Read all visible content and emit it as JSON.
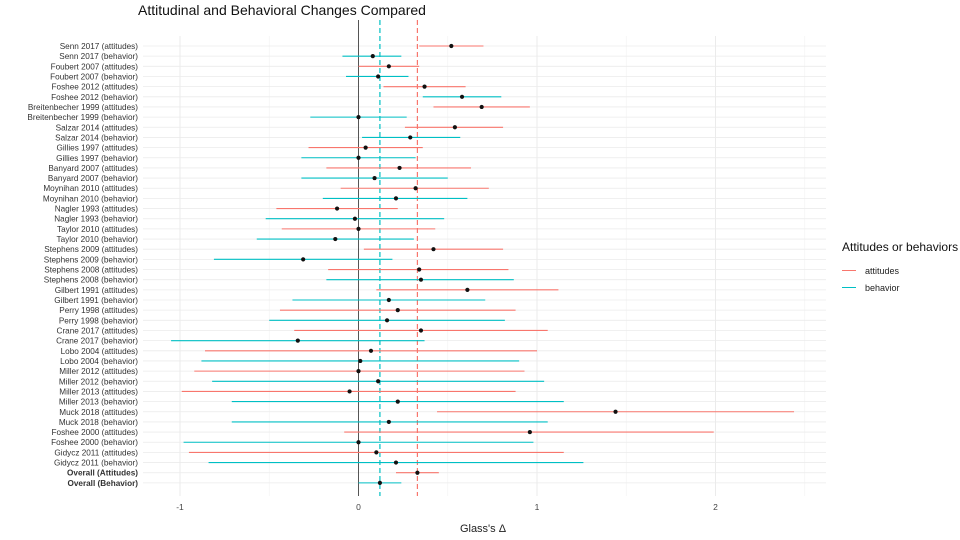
{
  "chart_data": {
    "type": "forest",
    "title": "Attitudinal and Behavioral Changes Compared",
    "xlabel": "Glass's Δ",
    "ylabel": "",
    "xlim": [
      -1.25,
      2.62
    ],
    "xticks": [
      -1,
      0,
      1,
      2
    ],
    "grid": true,
    "legend": {
      "title": "Attitudes or behaviors",
      "position": "right"
    },
    "series": [
      {
        "name": "attitudes",
        "color": "#F8766D"
      },
      {
        "name": "behavior",
        "color": "#00BFC4"
      }
    ],
    "reference_lines": [
      {
        "series": "attitudes",
        "x": 0.33,
        "style": "dashed"
      },
      {
        "series": "behavior",
        "x": 0.12,
        "style": "dashed"
      },
      {
        "x": 0,
        "style": "solid"
      }
    ],
    "rows": [
      {
        "label": "Senn 2017 (attitudes)",
        "series": "attitudes",
        "est": 0.52,
        "lo": 0.34,
        "hi": 0.7,
        "bold": false
      },
      {
        "label": "Senn 2017 (behavior)",
        "series": "behavior",
        "est": 0.08,
        "lo": -0.09,
        "hi": 0.24,
        "bold": false
      },
      {
        "label": "Foubert 2007 (attitudes)",
        "series": "attitudes",
        "est": 0.17,
        "lo": 0.0,
        "hi": 0.34,
        "bold": false
      },
      {
        "label": "Foubert 2007 (behavior)",
        "series": "behavior",
        "est": 0.11,
        "lo": -0.07,
        "hi": 0.28,
        "bold": false
      },
      {
        "label": "Foshee 2012 (attitudes)",
        "series": "attitudes",
        "est": 0.37,
        "lo": 0.14,
        "hi": 0.6,
        "bold": false
      },
      {
        "label": "Foshee 2012 (behavior)",
        "series": "behavior",
        "est": 0.58,
        "lo": 0.36,
        "hi": 0.8,
        "bold": false
      },
      {
        "label": "Breitenbecher 1999 (attitudes)",
        "series": "attitudes",
        "est": 0.69,
        "lo": 0.42,
        "hi": 0.96,
        "bold": false
      },
      {
        "label": "Breitenbecher 1999 (behavior)",
        "series": "behavior",
        "est": 0.0,
        "lo": -0.27,
        "hi": 0.27,
        "bold": false
      },
      {
        "label": "Salzar 2014 (attitudes)",
        "series": "attitudes",
        "est": 0.54,
        "lo": 0.26,
        "hi": 0.81,
        "bold": false
      },
      {
        "label": "Salzar 2014 (behavior)",
        "series": "behavior",
        "est": 0.29,
        "lo": 0.02,
        "hi": 0.57,
        "bold": false
      },
      {
        "label": "Gillies 1997 (attitudes)",
        "series": "attitudes",
        "est": 0.04,
        "lo": -0.28,
        "hi": 0.36,
        "bold": false
      },
      {
        "label": "Gillies 1997 (behavior)",
        "series": "behavior",
        "est": 0.0,
        "lo": -0.32,
        "hi": 0.32,
        "bold": false
      },
      {
        "label": "Banyard 2007 (attitudes)",
        "series": "attitudes",
        "est": 0.23,
        "lo": -0.18,
        "hi": 0.63,
        "bold": false
      },
      {
        "label": "Banyard 2007 (behavior)",
        "series": "behavior",
        "est": 0.09,
        "lo": -0.32,
        "hi": 0.5,
        "bold": false
      },
      {
        "label": "Moynihan 2010 (attitudes)",
        "series": "attitudes",
        "est": 0.32,
        "lo": -0.1,
        "hi": 0.73,
        "bold": false
      },
      {
        "label": "Moynihan 2010 (behavior)",
        "series": "behavior",
        "est": 0.21,
        "lo": -0.2,
        "hi": 0.61,
        "bold": false
      },
      {
        "label": "Nagler 1993 (attitudes)",
        "series": "attitudes",
        "est": -0.12,
        "lo": -0.46,
        "hi": 0.22,
        "bold": false
      },
      {
        "label": "Nagler 1993 (behavior)",
        "series": "behavior",
        "est": -0.02,
        "lo": -0.52,
        "hi": 0.48,
        "bold": false
      },
      {
        "label": "Taylor 2010 (attitudes)",
        "series": "attitudes",
        "est": 0.0,
        "lo": -0.43,
        "hi": 0.43,
        "bold": false
      },
      {
        "label": "Taylor 2010 (behavior)",
        "series": "behavior",
        "est": -0.13,
        "lo": -0.57,
        "hi": 0.31,
        "bold": false
      },
      {
        "label": "Stephens 2009 (attitudes)",
        "series": "attitudes",
        "est": 0.42,
        "lo": 0.03,
        "hi": 0.81,
        "bold": false
      },
      {
        "label": "Stephens 2009 (behavior)",
        "series": "behavior",
        "est": -0.31,
        "lo": -0.81,
        "hi": 0.19,
        "bold": false
      },
      {
        "label": "Stephens 2008 (attitudes)",
        "series": "attitudes",
        "est": 0.34,
        "lo": -0.17,
        "hi": 0.84,
        "bold": false
      },
      {
        "label": "Stephens 2008 (behavior)",
        "series": "behavior",
        "est": 0.35,
        "lo": -0.18,
        "hi": 0.87,
        "bold": false
      },
      {
        "label": "Gilbert 1991 (attitudes)",
        "series": "attitudes",
        "est": 0.61,
        "lo": 0.1,
        "hi": 1.12,
        "bold": false
      },
      {
        "label": "Gilbert 1991 (behavior)",
        "series": "behavior",
        "est": 0.17,
        "lo": -0.37,
        "hi": 0.71,
        "bold": false
      },
      {
        "label": "Perry 1998 (attitudes)",
        "series": "attitudes",
        "est": 0.22,
        "lo": -0.44,
        "hi": 0.88,
        "bold": false
      },
      {
        "label": "Perry 1998 (behavior)",
        "series": "behavior",
        "est": 0.16,
        "lo": -0.5,
        "hi": 0.82,
        "bold": false
      },
      {
        "label": "Crane 2017 (attitudes)",
        "series": "attitudes",
        "est": 0.35,
        "lo": -0.36,
        "hi": 1.06,
        "bold": false
      },
      {
        "label": "Crane 2017 (behavior)",
        "series": "behavior",
        "est": -0.34,
        "lo": -1.05,
        "hi": 0.37,
        "bold": false
      },
      {
        "label": "Lobo 2004 (attitudes)",
        "series": "attitudes",
        "est": 0.07,
        "lo": -0.86,
        "hi": 1.0,
        "bold": false
      },
      {
        "label": "Lobo 2004 (behavior)",
        "series": "behavior",
        "est": 0.01,
        "lo": -0.88,
        "hi": 0.9,
        "bold": false
      },
      {
        "label": "Miller 2012 (attitudes)",
        "series": "attitudes",
        "est": 0.0,
        "lo": -0.92,
        "hi": 0.93,
        "bold": false
      },
      {
        "label": "Miller 2012 (behavior)",
        "series": "behavior",
        "est": 0.11,
        "lo": -0.82,
        "hi": 1.04,
        "bold": false
      },
      {
        "label": "Miller 2013 (attitudes)",
        "series": "attitudes",
        "est": -0.05,
        "lo": -0.99,
        "hi": 0.88,
        "bold": false
      },
      {
        "label": "Miller 2013 (behavior)",
        "series": "behavior",
        "est": 0.22,
        "lo": -0.71,
        "hi": 1.15,
        "bold": false
      },
      {
        "label": "Muck 2018 (attitudes)",
        "series": "attitudes",
        "est": 1.44,
        "lo": 0.44,
        "hi": 2.44,
        "bold": false
      },
      {
        "label": "Muck 2018 (behavior)",
        "series": "behavior",
        "est": 0.17,
        "lo": -0.71,
        "hi": 1.06,
        "bold": false
      },
      {
        "label": "Foshee 2000 (attitudes)",
        "series": "attitudes",
        "est": 0.96,
        "lo": -0.08,
        "hi": 1.99,
        "bold": false
      },
      {
        "label": "Foshee 2000 (behavior)",
        "series": "behavior",
        "est": 0.0,
        "lo": -0.98,
        "hi": 0.98,
        "bold": false
      },
      {
        "label": "Gidycz 2011 (attitudes)",
        "series": "attitudes",
        "est": 0.1,
        "lo": -0.95,
        "hi": 1.15,
        "bold": false
      },
      {
        "label": "Gidycz 2011 (behavior)",
        "series": "behavior",
        "est": 0.21,
        "lo": -0.84,
        "hi": 1.26,
        "bold": false
      },
      {
        "label": "Overall (Attitudes)",
        "series": "attitudes",
        "est": 0.33,
        "lo": 0.21,
        "hi": 0.45,
        "bold": true
      },
      {
        "label": "Overall (Behavior)",
        "series": "behavior",
        "est": 0.12,
        "lo": 0.0,
        "hi": 0.24,
        "bold": true
      }
    ]
  }
}
